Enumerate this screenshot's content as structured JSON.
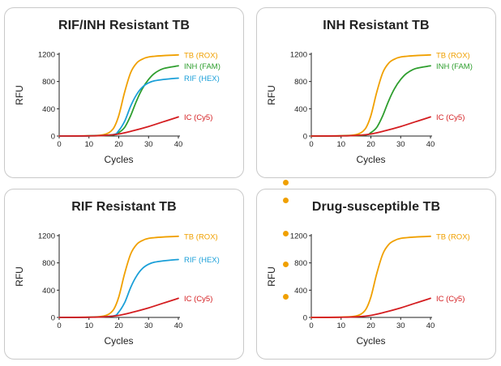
{
  "colors": {
    "rox": "#f0a000",
    "fam": "#2e9e2e",
    "hex": "#1a9fd8",
    "cy5": "#d41d20",
    "axis": "#222222",
    "dots": "#f0a000"
  },
  "chart_data": [
    {
      "type": "line",
      "title": "RIF/INH Resistant TB",
      "xlabel": "Cycles",
      "ylabel": "RFU",
      "xlim": [
        0,
        40
      ],
      "ylim": [
        0,
        1200
      ],
      "xticks": [
        "0",
        "10",
        "20",
        "30",
        "40"
      ],
      "yticks": [
        "0",
        "400",
        "800",
        "1200"
      ],
      "series": [
        {
          "name": "TB (ROX)",
          "color_key": "rox",
          "x": [
            0,
            10,
            15,
            18,
            20,
            22,
            24,
            26,
            28,
            30,
            32,
            35,
            40
          ],
          "values": [
            0,
            5,
            20,
            100,
            300,
            650,
            930,
            1070,
            1130,
            1160,
            1170,
            1180,
            1190
          ]
        },
        {
          "name": "INH (FAM)",
          "color_key": "fam",
          "x": [
            0,
            10,
            18,
            20,
            22,
            24,
            26,
            28,
            30,
            32,
            35,
            40
          ],
          "values": [
            0,
            2,
            15,
            50,
            130,
            300,
            520,
            700,
            830,
            920,
            990,
            1030
          ]
        },
        {
          "name": "RIF (HEX)",
          "color_key": "hex",
          "x": [
            0,
            10,
            18,
            20,
            22,
            24,
            26,
            28,
            30,
            32,
            35,
            40
          ],
          "values": [
            0,
            2,
            20,
            80,
            220,
            440,
            610,
            720,
            780,
            810,
            830,
            850
          ]
        },
        {
          "name": "IC (Cy5)",
          "color_key": "cy5",
          "x": [
            0,
            10,
            15,
            20,
            25,
            30,
            35,
            40
          ],
          "values": [
            0,
            2,
            8,
            30,
            80,
            140,
            210,
            280
          ]
        }
      ]
    },
    {
      "type": "line",
      "title": "INH Resistant TB",
      "xlabel": "Cycles",
      "ylabel": "RFU",
      "xlim": [
        0,
        40
      ],
      "ylim": [
        0,
        1200
      ],
      "xticks": [
        "0",
        "10",
        "20",
        "30",
        "40"
      ],
      "yticks": [
        "0",
        "400",
        "800",
        "1200"
      ],
      "series": [
        {
          "name": "TB (ROX)",
          "color_key": "rox",
          "x": [
            0,
            10,
            15,
            18,
            20,
            22,
            24,
            26,
            28,
            30,
            32,
            35,
            40
          ],
          "values": [
            0,
            5,
            20,
            100,
            300,
            650,
            930,
            1070,
            1130,
            1160,
            1170,
            1180,
            1190
          ]
        },
        {
          "name": "INH (FAM)",
          "color_key": "fam",
          "x": [
            0,
            10,
            18,
            20,
            22,
            24,
            26,
            28,
            30,
            32,
            35,
            40
          ],
          "values": [
            0,
            2,
            15,
            50,
            130,
            300,
            520,
            700,
            830,
            920,
            990,
            1030
          ]
        },
        {
          "name": "IC (Cy5)",
          "color_key": "cy5",
          "x": [
            0,
            10,
            15,
            20,
            25,
            30,
            35,
            40
          ],
          "values": [
            0,
            2,
            8,
            30,
            80,
            140,
            210,
            280
          ]
        }
      ]
    },
    {
      "type": "line",
      "title": "RIF Resistant TB",
      "xlabel": "Cycles",
      "ylabel": "RFU",
      "xlim": [
        0,
        40
      ],
      "ylim": [
        0,
        1200
      ],
      "xticks": [
        "0",
        "10",
        "20",
        "30",
        "40"
      ],
      "yticks": [
        "0",
        "400",
        "800",
        "1200"
      ],
      "series": [
        {
          "name": "TB (ROX)",
          "color_key": "rox",
          "x": [
            0,
            10,
            15,
            18,
            20,
            22,
            24,
            26,
            28,
            30,
            32,
            35,
            40
          ],
          "values": [
            0,
            5,
            20,
            100,
            300,
            650,
            930,
            1070,
            1130,
            1160,
            1170,
            1180,
            1190
          ]
        },
        {
          "name": "RIF (HEX)",
          "color_key": "hex",
          "x": [
            0,
            10,
            18,
            20,
            22,
            24,
            26,
            28,
            30,
            32,
            35,
            40
          ],
          "values": [
            0,
            2,
            20,
            80,
            220,
            440,
            610,
            720,
            780,
            810,
            830,
            850
          ]
        },
        {
          "name": "IC (Cy5)",
          "color_key": "cy5",
          "x": [
            0,
            10,
            15,
            20,
            25,
            30,
            35,
            40
          ],
          "values": [
            0,
            2,
            8,
            30,
            80,
            140,
            210,
            280
          ]
        }
      ]
    },
    {
      "type": "line",
      "title": "Drug-susceptible TB",
      "xlabel": "Cycles",
      "ylabel": "RFU",
      "xlim": [
        0,
        40
      ],
      "ylim": [
        0,
        1200
      ],
      "xticks": [
        "0",
        "10",
        "20",
        "30",
        "40"
      ],
      "yticks": [
        "0",
        "400",
        "800",
        "1200"
      ],
      "series": [
        {
          "name": "TB (ROX)",
          "color_key": "rox",
          "x": [
            0,
            10,
            15,
            18,
            20,
            22,
            24,
            26,
            28,
            30,
            32,
            35,
            40
          ],
          "values": [
            0,
            5,
            20,
            100,
            300,
            650,
            930,
            1070,
            1130,
            1160,
            1170,
            1180,
            1190
          ]
        },
        {
          "name": "IC (Cy5)",
          "color_key": "cy5",
          "x": [
            0,
            10,
            15,
            20,
            25,
            30,
            35,
            40
          ],
          "values": [
            0,
            2,
            8,
            30,
            80,
            140,
            210,
            280
          ]
        }
      ]
    }
  ]
}
